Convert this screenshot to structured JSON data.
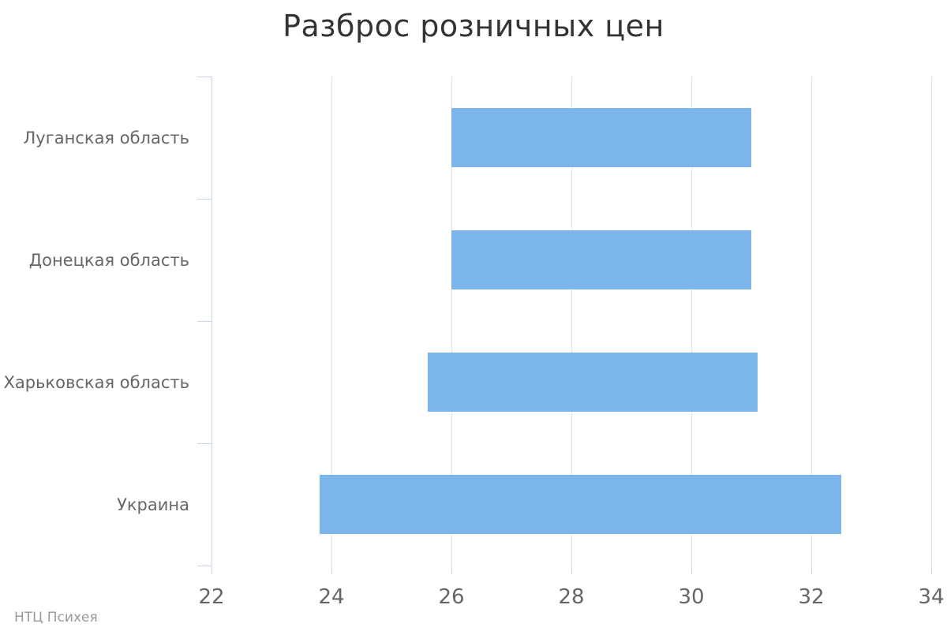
{
  "chart_data": {
    "type": "bar",
    "subtype": "range",
    "orientation": "horizontal",
    "title": "Разброс розничных цен",
    "credit": "НТЦ Психея",
    "categories": [
      "Луганская область",
      "Донецкая область",
      "Харьковская область",
      "Украина"
    ],
    "bars": [
      {
        "category": "Луганская область",
        "low": 26.0,
        "high": 31.0
      },
      {
        "category": "Донецкая область",
        "low": 26.0,
        "high": 31.0
      },
      {
        "category": "Харьковская область",
        "low": 25.6,
        "high": 31.1
      },
      {
        "category": "Украина",
        "low": 23.8,
        "high": 32.5
      }
    ],
    "value_axis": {
      "min": 22,
      "max": 34,
      "tick_interval": 2,
      "tick_labels": [
        "22",
        "24",
        "26",
        "28",
        "30",
        "32",
        "34"
      ]
    },
    "grid": true,
    "legend": false,
    "colors": {
      "bar": "#7cb5ec",
      "grid_line": "#e6e6e6",
      "axis_line": "#ccd6eb",
      "title_text": "#333333",
      "label_text": "#666666",
      "credit_text": "#999999"
    }
  }
}
